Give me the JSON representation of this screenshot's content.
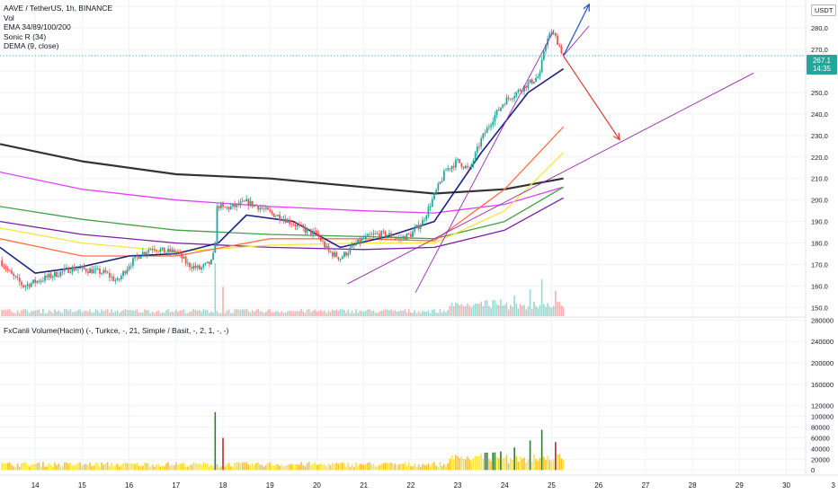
{
  "legend": {
    "symbol": "AAVE / TetherUS, 1h, BINANCE",
    "vol": "Vol",
    "ema": "EMA 34/89/100/200",
    "sonic": "Sonic R (34)",
    "dema": "DEMA (9, close)"
  },
  "pane2_legend": "FxCanli Volume(Hacim) (-, Turkce, -, 21, Simple / Basit, -, 2, 1, -, -)",
  "currency": "USDT",
  "last_price": {
    "value": "267.1",
    "countdown": "14:35",
    "color": "#26a69a"
  },
  "colors": {
    "up": "#26a69a",
    "down": "#ef5350",
    "ema_black": "#333333",
    "ema_pink": "#e040fb",
    "ema_green": "#43a047",
    "ema_purple": "#7b1fa2",
    "arrow_up": "#1e50c8",
    "arrow_down": "#e53935"
  },
  "chart_data": [
    {
      "type": "candlestick",
      "title": "AAVE / TetherUS, 1h, BINANCE",
      "x_ticks": [
        "14",
        "15",
        "16",
        "17",
        "18",
        "19",
        "20",
        "21",
        "22",
        "23",
        "24",
        "25",
        "26",
        "27",
        "28",
        "29",
        "30",
        "3"
      ],
      "y_ticks": [
        150,
        160,
        170,
        180,
        190,
        200,
        210,
        220,
        230,
        240,
        250,
        260,
        270,
        280,
        290
      ],
      "ylim": [
        146,
        293
      ],
      "xlim_days": [
        13.25,
        31.1
      ],
      "grid": true,
      "price_path": [
        [
          13.25,
          172
        ],
        [
          13.5,
          165
        ],
        [
          13.75,
          160
        ],
        [
          14.0,
          162
        ],
        [
          14.25,
          164
        ],
        [
          14.5,
          166
        ],
        [
          14.75,
          168
        ],
        [
          15.0,
          168
        ],
        [
          15.25,
          167
        ],
        [
          15.5,
          166
        ],
        [
          15.75,
          162
        ],
        [
          16.0,
          170
        ],
        [
          16.25,
          175
        ],
        [
          16.5,
          178
        ],
        [
          16.75,
          176
        ],
        [
          17.0,
          176
        ],
        [
          17.25,
          170
        ],
        [
          17.5,
          168
        ],
        [
          17.75,
          171
        ],
        [
          17.82,
          176
        ],
        [
          17.88,
          198
        ],
        [
          18.0,
          196
        ],
        [
          18.25,
          197
        ],
        [
          18.5,
          199
        ],
        [
          18.75,
          197
        ],
        [
          19.0,
          194
        ],
        [
          19.25,
          192
        ],
        [
          19.5,
          189
        ],
        [
          19.75,
          186
        ],
        [
          20.0,
          184
        ],
        [
          20.25,
          176
        ],
        [
          20.5,
          173
        ],
        [
          20.75,
          178
        ],
        [
          21.0,
          182
        ],
        [
          21.25,
          184
        ],
        [
          21.5,
          184
        ],
        [
          21.75,
          182
        ],
        [
          22.0,
          184
        ],
        [
          22.25,
          190
        ],
        [
          22.5,
          202
        ],
        [
          22.75,
          214
        ],
        [
          23.0,
          218
        ],
        [
          23.25,
          214
        ],
        [
          23.5,
          228
        ],
        [
          23.75,
          238
        ],
        [
          24.0,
          246
        ],
        [
          24.25,
          250
        ],
        [
          24.5,
          254
        ],
        [
          24.75,
          258
        ],
        [
          24.85,
          272
        ],
        [
          25.0,
          278
        ],
        [
          25.1,
          275
        ],
        [
          25.25,
          267.1
        ]
      ],
      "moving_averages": [
        {
          "name": "EMA 200",
          "color": "#333333",
          "points": [
            [
              13.25,
              226
            ],
            [
              15,
              218
            ],
            [
              17,
              212
            ],
            [
              19,
              210
            ],
            [
              21,
              206
            ],
            [
              22.5,
              203
            ],
            [
              24,
              205
            ],
            [
              25.25,
              210
            ]
          ]
        },
        {
          "name": "pink",
          "color": "#e040fb",
          "points": [
            [
              13.25,
              213
            ],
            [
              15,
              205
            ],
            [
              17,
              200
            ],
            [
              19,
              197
            ],
            [
              21,
              195
            ],
            [
              22.5,
              194
            ],
            [
              24,
              198
            ],
            [
              25.25,
              206
            ]
          ]
        },
        {
          "name": "green",
          "color": "#43a047",
          "points": [
            [
              13.25,
              197
            ],
            [
              15,
              191
            ],
            [
              17,
              186
            ],
            [
              19,
              184
            ],
            [
              21,
              183
            ],
            [
              22.5,
              182
            ],
            [
              24,
              190
            ],
            [
              25.25,
              206
            ]
          ]
        },
        {
          "name": "purple",
          "color": "#7b1fa2",
          "points": [
            [
              13.25,
              190
            ],
            [
              15,
              184
            ],
            [
              17,
              180
            ],
            [
              19,
              178
            ],
            [
              21,
              177
            ],
            [
              22.5,
              178
            ],
            [
              24,
              186
            ],
            [
              25.25,
              201
            ]
          ]
        },
        {
          "name": "yellow",
          "color": "#f9e53d",
          "points": [
            [
              13.25,
              187
            ],
            [
              15,
              180
            ],
            [
              17,
              176
            ],
            [
              19,
              179
            ],
            [
              21,
              180
            ],
            [
              22.5,
              180
            ],
            [
              24,
              195
            ],
            [
              25.25,
              222
            ]
          ]
        },
        {
          "name": "orange",
          "color": "#ff7043",
          "points": [
            [
              13.25,
              182
            ],
            [
              15,
              174
            ],
            [
              17,
              174
            ],
            [
              19,
              182
            ],
            [
              21,
              182
            ],
            [
              22.5,
              181
            ],
            [
              24,
              205
            ],
            [
              25.25,
              234
            ]
          ]
        },
        {
          "name": "Sonic R",
          "color": "#1a237e",
          "points": [
            [
              13.25,
              178
            ],
            [
              14,
              166
            ],
            [
              15,
              169
            ],
            [
              16,
              174
            ],
            [
              17,
              175
            ],
            [
              17.9,
              180
            ],
            [
              18.5,
              193
            ],
            [
              19.5,
              190
            ],
            [
              20.5,
              178
            ],
            [
              21.5,
              183
            ],
            [
              22.5,
              190
            ],
            [
              23.5,
              222
            ],
            [
              24.5,
              250
            ],
            [
              25.25,
              261
            ]
          ]
        }
      ],
      "drawings": [
        {
          "name": "trendline-1",
          "color": "#9c27b0",
          "from": [
            20.65,
            161
          ],
          "to": [
            29.3,
            259
          ]
        },
        {
          "name": "trendline-2",
          "color": "#9c27b0",
          "from": [
            22.1,
            157
          ],
          "to": [
            25.05,
            279
          ]
        },
        {
          "name": "channel-line",
          "color": "#9c27b0",
          "from": [
            25.25,
            267
          ],
          "to": [
            25.8,
            281
          ]
        },
        {
          "name": "bullish-arrow",
          "color": "#1e50c8",
          "from": [
            25.25,
            267
          ],
          "to": [
            25.8,
            291
          ]
        },
        {
          "name": "bearish-arrow",
          "color": "#e53935",
          "from": [
            25.25,
            267
          ],
          "to": [
            26.45,
            228
          ]
        }
      ]
    },
    {
      "type": "bar",
      "title": "FxCanli Volume(Hacim)",
      "y_ticks": [
        0,
        20000,
        40000,
        60000,
        80000,
        100000,
        120000,
        160000,
        200000,
        240000,
        280000
      ],
      "ylim": [
        -8000,
        284000
      ],
      "spikes": [
        [
          17.85,
          108000
        ],
        [
          18.0,
          60000
        ],
        [
          23.1,
          25000
        ],
        [
          23.5,
          30000
        ],
        [
          24.2,
          42000
        ],
        [
          24.55,
          55000
        ],
        [
          24.8,
          75000
        ],
        [
          25.1,
          52000
        ]
      ]
    }
  ]
}
